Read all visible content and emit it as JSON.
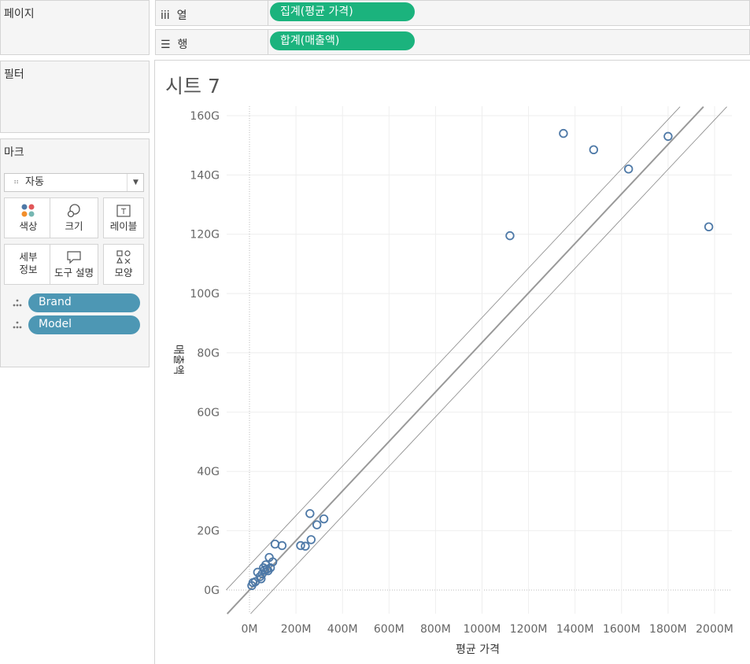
{
  "panels": {
    "pages": "페이지",
    "filters": "필터",
    "marks": "마크"
  },
  "shelves": {
    "columns": {
      "icon": "iii",
      "label": "열",
      "pill": "집계(평균 가격)"
    },
    "rows": {
      "icon": "☰",
      "label": "행",
      "pill": "합계(매출액)"
    }
  },
  "marks": {
    "type_icon": "shapes-icon",
    "type": "자동",
    "buttons": [
      {
        "label": "색상",
        "icon": "color-icon"
      },
      {
        "label": "크기",
        "icon": "size-icon"
      },
      {
        "label": "레이블",
        "icon": "label-icon"
      },
      {
        "label": "세부\n정보",
        "icon": "detail-icon"
      },
      {
        "label": "도구 설명",
        "icon": "tooltip-icon"
      },
      {
        "label": "모양",
        "icon": "shape-icon"
      }
    ],
    "fields": [
      "Brand",
      "Model"
    ]
  },
  "sheet": {
    "title": "시트 7"
  },
  "colors": {
    "green_pill": "#1bb37d",
    "blue_pill": "#4d97b4",
    "point": "#4e79a7",
    "trend": "#999999"
  },
  "chart_data": {
    "type": "scatter",
    "xlabel": "평균 가격",
    "ylabel": "매출액",
    "xlim": [
      -100,
      2080
    ],
    "ylim": [
      -8,
      163
    ],
    "x_ticks": [
      "0M",
      "200M",
      "400M",
      "600M",
      "800M",
      "1000M",
      "1200M",
      "1400M",
      "1600M",
      "1800M",
      "2000M"
    ],
    "y_ticks": [
      "0G",
      "20G",
      "40G",
      "60G",
      "80G",
      "100G",
      "120G",
      "140G",
      "160G"
    ],
    "grid": true,
    "trend_line": {
      "slope": 0.0835,
      "intercept": 0,
      "band": 3.5
    },
    "x": [
      10,
      15,
      25,
      35,
      45,
      50,
      55,
      60,
      65,
      70,
      75,
      80,
      85,
      90,
      100,
      110,
      140,
      220,
      240,
      260,
      265,
      290,
      320,
      1120,
      1350,
      1480,
      1630,
      1800,
      1975
    ],
    "y": [
      1.5,
      2.5,
      2.8,
      6.0,
      4.5,
      3.8,
      5.5,
      7.5,
      6.8,
      8.5,
      7.0,
      6.5,
      11.0,
      7.5,
      9.5,
      15.5,
      15.0,
      15.0,
      14.8,
      25.8,
      17.0,
      22.0,
      24.0,
      119.5,
      154.0,
      148.5,
      142.0,
      153.0,
      122.5
    ]
  }
}
